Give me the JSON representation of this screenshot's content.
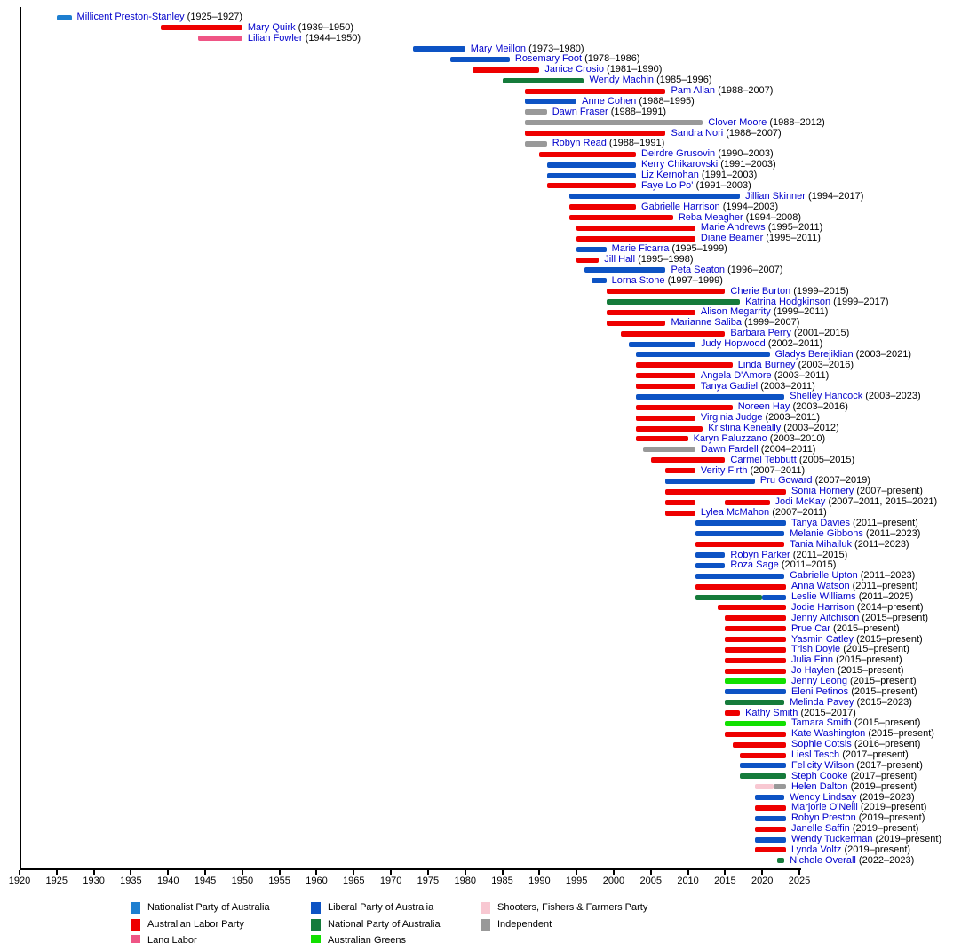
{
  "chart_data": {
    "type": "timeline",
    "title": "",
    "x_axis": {
      "start": 1920,
      "end": 2025,
      "step": 5,
      "ticks": [
        1920,
        1925,
        1930,
        1935,
        1940,
        1945,
        1950,
        1955,
        1960,
        1965,
        1970,
        1975,
        1980,
        1985,
        1990,
        1995,
        2000,
        2005,
        2010,
        2015,
        2020,
        2025
      ]
    },
    "colors": {
      "member_name_link": "#0000CC",
      "axis_text": "#000000",
      "background": "#FFFFFF"
    },
    "parties": {
      "nationalist": {
        "label": "Nationalist Party of Australia",
        "color": "#1E7FD0"
      },
      "labor": {
        "label": "Australian Labor Party",
        "color": "#EE0000"
      },
      "lang_labor": {
        "label": "Lang Labor",
        "color": "#EF5585"
      },
      "liberal": {
        "label": "Liberal Party of Australia",
        "color": "#0D53C4"
      },
      "national": {
        "label": "National Party of Australia",
        "color": "#157B3B"
      },
      "greens": {
        "label": "Australian Greens",
        "color": "#11E000"
      },
      "shooters": {
        "label": "Shooters, Fishers & Farmers Party",
        "color": "#F8C8D2"
      },
      "independent": {
        "label": "Independent",
        "color": "#999999"
      }
    },
    "legend_columns": [
      [
        "nationalist",
        "labor",
        "lang_labor"
      ],
      [
        "liberal",
        "national",
        "greens"
      ],
      [
        "shooters",
        "independent"
      ]
    ],
    "members": [
      {
        "name": "Millicent Preston-Stanley",
        "dates": "(1925–1927)",
        "seg": [
          [
            1925,
            1927,
            "nationalist"
          ]
        ]
      },
      {
        "name": "Mary Quirk",
        "dates": "(1939–1950)",
        "seg": [
          [
            1939,
            1950,
            "labor"
          ]
        ]
      },
      {
        "name": "Lilian Fowler",
        "dates": "(1944–1950)",
        "seg": [
          [
            1944,
            1950,
            "lang_labor"
          ]
        ]
      },
      {
        "name": "Mary Meillon",
        "dates": "(1973–1980)",
        "seg": [
          [
            1973,
            1980,
            "liberal"
          ]
        ]
      },
      {
        "name": "Rosemary Foot",
        "dates": "(1978–1986)",
        "seg": [
          [
            1978,
            1986,
            "liberal"
          ]
        ]
      },
      {
        "name": "Janice Crosio",
        "dates": "(1981–1990)",
        "seg": [
          [
            1981,
            1990,
            "labor"
          ]
        ]
      },
      {
        "name": "Wendy Machin",
        "dates": "(1985–1996)",
        "seg": [
          [
            1985,
            1996,
            "national"
          ]
        ]
      },
      {
        "name": "Pam Allan",
        "dates": "(1988–2007)",
        "seg": [
          [
            1988,
            2007,
            "labor"
          ]
        ]
      },
      {
        "name": "Anne Cohen",
        "dates": "(1988–1995)",
        "seg": [
          [
            1988,
            1995,
            "liberal"
          ]
        ]
      },
      {
        "name": "Dawn Fraser",
        "dates": "(1988–1991)",
        "seg": [
          [
            1988,
            1991,
            "independent"
          ]
        ]
      },
      {
        "name": "Clover Moore",
        "dates": "(1988–2012)",
        "seg": [
          [
            1988,
            2012,
            "independent"
          ]
        ]
      },
      {
        "name": "Sandra Nori",
        "dates": "(1988–2007)",
        "seg": [
          [
            1988,
            2007,
            "labor"
          ]
        ]
      },
      {
        "name": "Robyn Read",
        "dates": "(1988–1991)",
        "seg": [
          [
            1988,
            1991,
            "independent"
          ]
        ]
      },
      {
        "name": "Deirdre Grusovin",
        "dates": "(1990–2003)",
        "seg": [
          [
            1990,
            2003,
            "labor"
          ]
        ]
      },
      {
        "name": "Kerry Chikarovski",
        "dates": "(1991–2003)",
        "seg": [
          [
            1991,
            2003,
            "liberal"
          ]
        ]
      },
      {
        "name": "Liz Kernohan",
        "dates": "(1991–2003)",
        "seg": [
          [
            1991,
            2003,
            "liberal"
          ]
        ]
      },
      {
        "name": "Faye Lo Po'",
        "dates": "(1991–2003)",
        "seg": [
          [
            1991,
            2003,
            "labor"
          ]
        ]
      },
      {
        "name": "Jillian Skinner",
        "dates": "(1994–2017)",
        "seg": [
          [
            1994,
            2017,
            "liberal"
          ]
        ]
      },
      {
        "name": "Gabrielle Harrison",
        "dates": "(1994–2003)",
        "seg": [
          [
            1994,
            2003,
            "labor"
          ]
        ]
      },
      {
        "name": "Reba Meagher",
        "dates": "(1994–2008)",
        "seg": [
          [
            1994,
            2008,
            "labor"
          ]
        ]
      },
      {
        "name": "Marie Andrews",
        "dates": "(1995–2011)",
        "seg": [
          [
            1995,
            2011,
            "labor"
          ]
        ]
      },
      {
        "name": "Diane Beamer",
        "dates": "(1995–2011)",
        "seg": [
          [
            1995,
            2011,
            "labor"
          ]
        ]
      },
      {
        "name": "Marie Ficarra",
        "dates": "(1995–1999)",
        "seg": [
          [
            1995,
            1999,
            "liberal"
          ]
        ]
      },
      {
        "name": "Jill Hall",
        "dates": "(1995–1998)",
        "seg": [
          [
            1995,
            1998,
            "labor"
          ]
        ]
      },
      {
        "name": "Peta Seaton",
        "dates": "(1996–2007)",
        "seg": [
          [
            1996,
            2007,
            "liberal"
          ]
        ]
      },
      {
        "name": "Lorna Stone",
        "dates": "(1997–1999)",
        "seg": [
          [
            1997,
            1999,
            "liberal"
          ]
        ]
      },
      {
        "name": "Cherie Burton",
        "dates": "(1999–2015)",
        "seg": [
          [
            1999,
            2015,
            "labor"
          ]
        ]
      },
      {
        "name": "Katrina Hodgkinson",
        "dates": "(1999–2017)",
        "seg": [
          [
            1999,
            2017,
            "national"
          ]
        ]
      },
      {
        "name": "Alison Megarrity",
        "dates": "(1999–2011)",
        "seg": [
          [
            1999,
            2011,
            "labor"
          ]
        ]
      },
      {
        "name": "Marianne Saliba",
        "dates": "(1999–2007)",
        "seg": [
          [
            1999,
            2007,
            "labor"
          ]
        ]
      },
      {
        "name": "Barbara Perry",
        "dates": "(2001–2015)",
        "seg": [
          [
            2001,
            2015,
            "labor"
          ]
        ]
      },
      {
        "name": "Judy Hopwood",
        "dates": "(2002–2011)",
        "seg": [
          [
            2002,
            2011,
            "liberal"
          ]
        ]
      },
      {
        "name": "Gladys Berejiklian",
        "dates": "(2003–2021)",
        "seg": [
          [
            2003,
            2021,
            "liberal"
          ]
        ]
      },
      {
        "name": "Linda Burney",
        "dates": "(2003–2016)",
        "seg": [
          [
            2003,
            2016,
            "labor"
          ]
        ]
      },
      {
        "name": "Angela D'Amore",
        "dates": "(2003–2011)",
        "seg": [
          [
            2003,
            2011,
            "labor"
          ]
        ]
      },
      {
        "name": "Tanya Gadiel",
        "dates": "(2003–2011)",
        "seg": [
          [
            2003,
            2011,
            "labor"
          ]
        ]
      },
      {
        "name": "Shelley Hancock",
        "dates": "(2003–2023)",
        "seg": [
          [
            2003,
            2023,
            "liberal"
          ]
        ]
      },
      {
        "name": "Noreen Hay",
        "dates": "(2003–2016)",
        "seg": [
          [
            2003,
            2016,
            "labor"
          ]
        ]
      },
      {
        "name": "Virginia Judge",
        "dates": "(2003–2011)",
        "seg": [
          [
            2003,
            2011,
            "labor"
          ]
        ]
      },
      {
        "name": "Kristina Keneally",
        "dates": "(2003–2012)",
        "seg": [
          [
            2003,
            2012,
            "labor"
          ]
        ]
      },
      {
        "name": "Karyn Paluzzano",
        "dates": "(2003–2010)",
        "seg": [
          [
            2003,
            2010,
            "labor"
          ]
        ]
      },
      {
        "name": "Dawn Fardell",
        "dates": "(2004–2011)",
        "seg": [
          [
            2004,
            2011,
            "independent"
          ]
        ]
      },
      {
        "name": "Carmel Tebbutt",
        "dates": "(2005–2015)",
        "seg": [
          [
            2005,
            2015,
            "labor"
          ]
        ]
      },
      {
        "name": "Verity Firth",
        "dates": "(2007–2011)",
        "seg": [
          [
            2007,
            2011,
            "labor"
          ]
        ]
      },
      {
        "name": "Pru Goward",
        "dates": "(2007–2019)",
        "seg": [
          [
            2007,
            2019,
            "liberal"
          ]
        ]
      },
      {
        "name": "Sonia Hornery",
        "dates": "(2007–present)",
        "seg": [
          [
            2007,
            "present",
            "labor"
          ]
        ]
      },
      {
        "name": "Jodi McKay",
        "dates": "(2007–2011, 2015–2021)",
        "seg": [
          [
            2007,
            2011,
            "labor"
          ],
          [
            2015,
            2021,
            "labor"
          ]
        ]
      },
      {
        "name": "Lylea McMahon",
        "dates": "(2007–2011)",
        "seg": [
          [
            2007,
            2011,
            "labor"
          ]
        ]
      },
      {
        "name": "Tanya Davies",
        "dates": "(2011–present)",
        "seg": [
          [
            2011,
            "present",
            "liberal"
          ]
        ]
      },
      {
        "name": "Melanie Gibbons",
        "dates": "(2011–2023)",
        "seg": [
          [
            2011,
            2023,
            "liberal"
          ]
        ]
      },
      {
        "name": "Tania Mihailuk",
        "dates": "(2011–2023)",
        "seg": [
          [
            2011,
            2023,
            "labor"
          ]
        ]
      },
      {
        "name": "Robyn Parker",
        "dates": "(2011–2015)",
        "seg": [
          [
            2011,
            2015,
            "liberal"
          ]
        ]
      },
      {
        "name": "Roza Sage",
        "dates": "(2011–2015)",
        "seg": [
          [
            2011,
            2015,
            "liberal"
          ]
        ]
      },
      {
        "name": "Gabrielle Upton",
        "dates": "(2011–2023)",
        "seg": [
          [
            2011,
            2023,
            "liberal"
          ]
        ]
      },
      {
        "name": "Anna Watson",
        "dates": "(2011–present)",
        "seg": [
          [
            2011,
            "present",
            "labor"
          ]
        ]
      },
      {
        "name": "Leslie Williams",
        "dates": "(2011–2025)",
        "seg": [
          [
            2011,
            2020,
            "national"
          ],
          [
            2020,
            "present",
            "liberal"
          ]
        ]
      },
      {
        "name": "Jodie Harrison",
        "dates": "(2014–present)",
        "seg": [
          [
            2014,
            "present",
            "labor"
          ]
        ]
      },
      {
        "name": "Jenny Aitchison",
        "dates": "(2015–present)",
        "seg": [
          [
            2015,
            "present",
            "labor"
          ]
        ]
      },
      {
        "name": "Prue Car",
        "dates": "(2015–present)",
        "seg": [
          [
            2015,
            "present",
            "labor"
          ]
        ]
      },
      {
        "name": "Yasmin Catley",
        "dates": "(2015–present)",
        "seg": [
          [
            2015,
            "present",
            "labor"
          ]
        ]
      },
      {
        "name": "Trish Doyle",
        "dates": "(2015–present)",
        "seg": [
          [
            2015,
            "present",
            "labor"
          ]
        ]
      },
      {
        "name": "Julia Finn",
        "dates": "(2015–present)",
        "seg": [
          [
            2015,
            "present",
            "labor"
          ]
        ]
      },
      {
        "name": "Jo Haylen",
        "dates": "(2015–present)",
        "seg": [
          [
            2015,
            "present",
            "labor"
          ]
        ]
      },
      {
        "name": "Jenny Leong",
        "dates": "(2015–present)",
        "seg": [
          [
            2015,
            "present",
            "greens"
          ]
        ]
      },
      {
        "name": "Eleni Petinos",
        "dates": "(2015–present)",
        "seg": [
          [
            2015,
            "present",
            "liberal"
          ]
        ]
      },
      {
        "name": "Melinda Pavey",
        "dates": "(2015–2023)",
        "seg": [
          [
            2015,
            2023,
            "national"
          ]
        ]
      },
      {
        "name": "Kathy Smith",
        "dates": "(2015–2017)",
        "seg": [
          [
            2015,
            2017,
            "labor"
          ]
        ]
      },
      {
        "name": "Tamara Smith",
        "dates": "(2015–present)",
        "seg": [
          [
            2015,
            "present",
            "greens"
          ]
        ]
      },
      {
        "name": "Kate Washington",
        "dates": "(2015–present)",
        "seg": [
          [
            2015,
            "present",
            "labor"
          ]
        ]
      },
      {
        "name": "Sophie Cotsis",
        "dates": "(2016–present)",
        "seg": [
          [
            2016,
            "present",
            "labor"
          ]
        ]
      },
      {
        "name": "Liesl Tesch",
        "dates": "(2017–present)",
        "seg": [
          [
            2017,
            "present",
            "labor"
          ]
        ]
      },
      {
        "name": "Felicity Wilson",
        "dates": "(2017–present)",
        "seg": [
          [
            2017,
            "present",
            "liberal"
          ]
        ]
      },
      {
        "name": "Steph Cooke",
        "dates": "(2017–present)",
        "seg": [
          [
            2017,
            "present",
            "national"
          ]
        ]
      },
      {
        "name": "Helen Dalton",
        "dates": "(2019–present)",
        "seg": [
          [
            2019,
            2021.5,
            "shooters"
          ],
          [
            2021.5,
            "present",
            "independent"
          ]
        ]
      },
      {
        "name": "Wendy Lindsay",
        "dates": "(2019–2023)",
        "seg": [
          [
            2019,
            2023,
            "liberal"
          ]
        ]
      },
      {
        "name": "Marjorie O'Neill",
        "dates": "(2019–present)",
        "seg": [
          [
            2019,
            "present",
            "labor"
          ]
        ]
      },
      {
        "name": "Robyn Preston",
        "dates": "(2019–present)",
        "seg": [
          [
            2019,
            "present",
            "liberal"
          ]
        ]
      },
      {
        "name": "Janelle Saffin",
        "dates": "(2019–present)",
        "seg": [
          [
            2019,
            "present",
            "labor"
          ]
        ]
      },
      {
        "name": "Wendy Tuckerman",
        "dates": "(2019–present)",
        "seg": [
          [
            2019,
            "present",
            "liberal"
          ]
        ]
      },
      {
        "name": "Lynda Voltz",
        "dates": "(2019–present)",
        "seg": [
          [
            2019,
            "present",
            "labor"
          ]
        ]
      },
      {
        "name": "Nichole Overall",
        "dates": "(2022–2023)",
        "seg": [
          [
            2022,
            2023,
            "national"
          ]
        ]
      }
    ]
  }
}
